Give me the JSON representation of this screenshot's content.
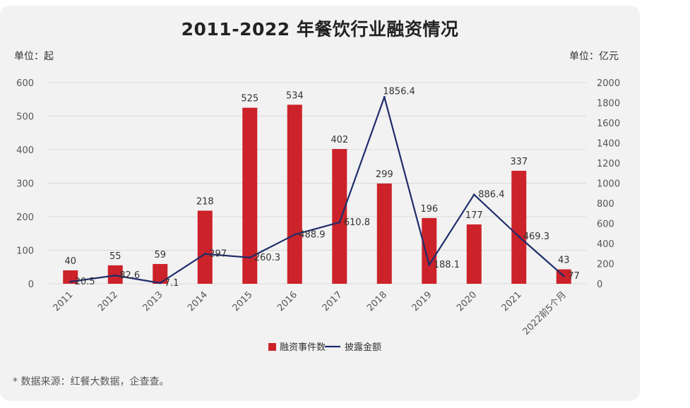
{
  "title": "2011-2022 年餐饮行业融资情况",
  "unit_left": "单位：起",
  "unit_right": "单位：亿元",
  "footnote": "* 数据来源：红餐大数据，企查查。",
  "colors": {
    "bar": "#cc2229",
    "line": "#1f2d6b",
    "grid": "#d9d9d9"
  },
  "chart_data": {
    "type": "bar",
    "categories": [
      "2011",
      "2012",
      "2013",
      "2014",
      "2015",
      "2016",
      "2017",
      "2018",
      "2019",
      "2020",
      "2021",
      "2022前5个月"
    ],
    "series": [
      {
        "name": "融资事件数",
        "type": "bar",
        "axis": "left",
        "values": [
          40,
          55,
          59,
          218,
          525,
          534,
          402,
          299,
          196,
          177,
          337,
          43
        ],
        "labels": [
          "40",
          "55",
          "59",
          "218",
          "525",
          "534",
          "402",
          "299",
          "196",
          "177",
          "337",
          "43"
        ]
      },
      {
        "name": "披露金额",
        "type": "line",
        "axis": "right",
        "values": [
          20.5,
          82.6,
          7.1,
          297,
          260.3,
          488.9,
          610.8,
          1856.4,
          188.1,
          886.4,
          469.3,
          77
        ],
        "labels": [
          "20.5",
          "82.6",
          "7.1",
          "297",
          "260.3",
          "488.9",
          "610.8",
          "1856.4",
          "188.1",
          "886.4",
          "469.3",
          "77"
        ]
      }
    ],
    "y_left": {
      "min": 0,
      "max": 600,
      "ticks": [
        "0",
        "100",
        "200",
        "300",
        "400",
        "500",
        "600"
      ]
    },
    "y_right": {
      "min": 0,
      "max": 2000,
      "ticks": [
        "0",
        "200",
        "400",
        "600",
        "800",
        "1000",
        "1200",
        "1400",
        "1600",
        "1800",
        "2000"
      ]
    },
    "grid": true,
    "legend": "bottom"
  }
}
